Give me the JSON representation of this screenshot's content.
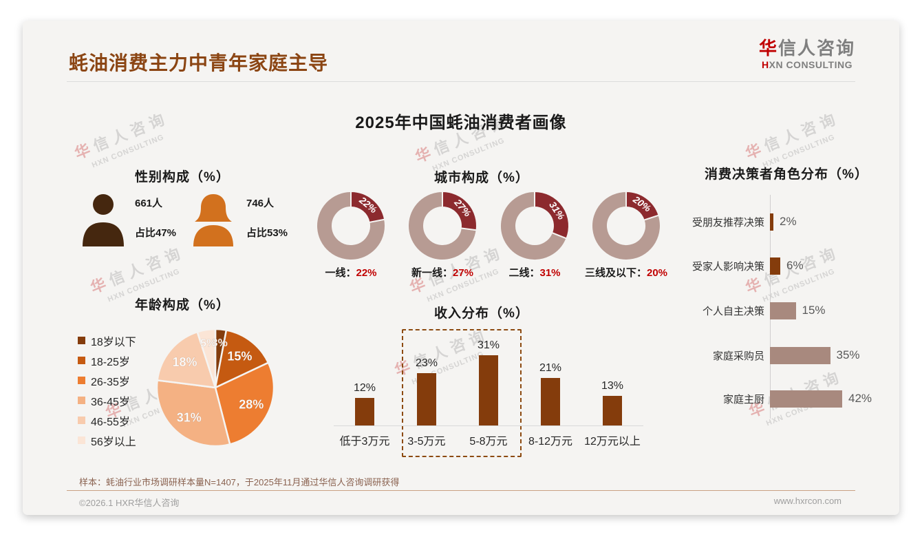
{
  "page": {
    "title": "蚝油消费主力中青年家庭主导",
    "logo": {
      "cn_first": "华",
      "cn_rest": "信人咨询",
      "en_first": "H",
      "en_rest": "XN CONSULTING"
    },
    "center_title": "2025年中国蚝油消费者画像",
    "watermark": {
      "line1_first": "华",
      "line1_rest": "信人咨询",
      "line2": "HXN CONSULTING"
    },
    "footer": {
      "note": "样本：蚝油行业市场调研样本量N=1407，于2025年11月通过华信人咨询调研获得",
      "copyright": "©2026.1 HXR华信人咨询",
      "website": "www.hxrcon.com"
    }
  },
  "colors": {
    "title_brown": "#8B4513",
    "bar_brown": "#843C0C",
    "rosy_bar": "#A8897E",
    "donut_slice": "#8C2A2E",
    "donut_remainder": "#B79B93",
    "red_value": "#C00000",
    "card_bg": "#F5F4F2"
  },
  "chart_data": [
    {
      "id": "gender",
      "type": "pictogram",
      "title": "性别构成（%）",
      "items": [
        {
          "icon": "male-icon",
          "count": "661人",
          "share": "占比47%",
          "color": "#45270F"
        },
        {
          "icon": "female-icon",
          "count": "746人",
          "share": "占比53%",
          "color": "#D2711E"
        }
      ]
    },
    {
      "id": "city",
      "type": "pie",
      "variant": "donut",
      "title": "城市构成（%）",
      "categories": [
        "一线",
        "新一线",
        "二线",
        "三线及以下"
      ],
      "values": [
        22,
        27,
        31,
        20
      ],
      "slice_color": "#8C2A2E",
      "remainder_color": "#B79B93",
      "value_color": "#C00000"
    },
    {
      "id": "age",
      "type": "pie",
      "title": "年龄构成（%）",
      "categories": [
        "18岁以下",
        "18-25岁",
        "26-35岁",
        "36-45岁",
        "46-55岁",
        "56岁以上"
      ],
      "values": [
        3,
        15,
        28,
        31,
        18,
        5
      ],
      "colors": [
        "#843C0C",
        "#C55A11",
        "#ED7D31",
        "#F4B183",
        "#F8CBAD",
        "#FBE5D6"
      ],
      "legend_position": "left"
    },
    {
      "id": "income",
      "type": "bar",
      "title": "收入分布（%）",
      "categories": [
        "低于3万元",
        "3-5万元",
        "5-8万元",
        "8-12万元",
        "12万元以上"
      ],
      "values": [
        12,
        23,
        31,
        21,
        13
      ],
      "bar_color": "#843C0C",
      "highlight_categories": [
        "3-5万元",
        "5-8万元"
      ]
    },
    {
      "id": "decision",
      "type": "bar",
      "orientation": "horizontal",
      "title": "消费决策者角色分布（%）",
      "categories": [
        "受朋友推荐决策",
        "受家人影响决策",
        "个人自主决策",
        "家庭采购员",
        "家庭主厨"
      ],
      "values": [
        2,
        6,
        15,
        35,
        42
      ],
      "bar_colors": [
        "#843C0C",
        "#843C0C",
        "#A8897E",
        "#A8897E",
        "#A8897E"
      ]
    }
  ]
}
